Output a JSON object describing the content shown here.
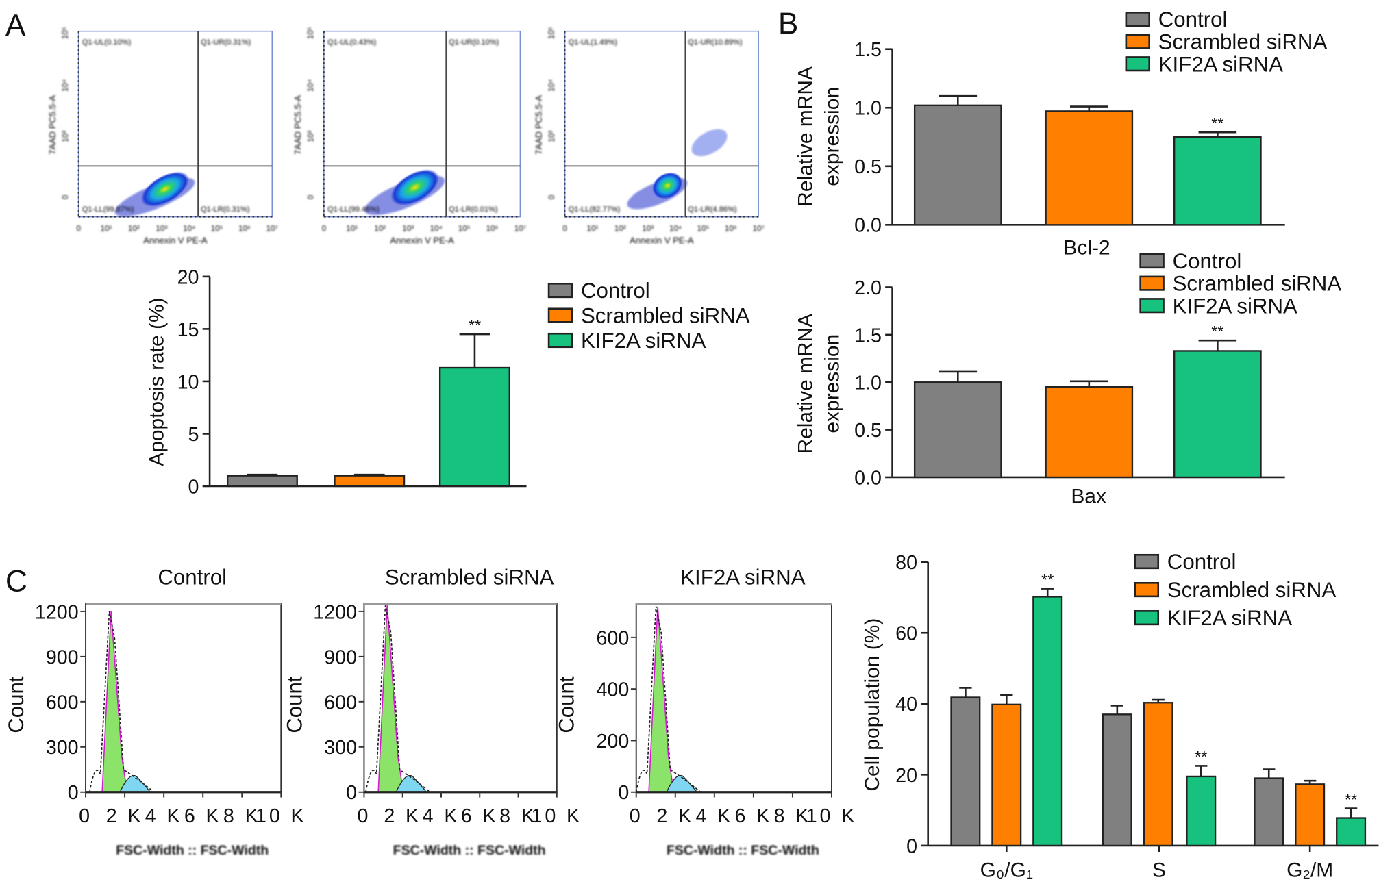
{
  "panel_labels": {
    "a": "A",
    "b": "B",
    "c": "C"
  },
  "colors": {
    "control": "#808080",
    "scrambled": "#ff8000",
    "kif2a": "#17c27f",
    "axis": "#222222"
  },
  "chart_data": [
    {
      "id": "flow-annexin",
      "type": "scatter",
      "xlabel": "Annexin V PE-A",
      "ylabel": "7AAD PC5.5-A",
      "xticks": [
        "0",
        "10¹",
        "10²",
        "10³",
        "10⁴",
        "10⁵",
        "10⁶",
        "10⁷"
      ],
      "yticks": [
        "0",
        "10³",
        "10⁴",
        "10⁵"
      ],
      "panels": [
        {
          "group": "Control",
          "UL": "Q1-UL(0.10%)",
          "UR": "Q1-UR(0.31%)",
          "LL": "Q1-LL(99.87%)",
          "LR": "Q1-LR(0.31%)"
        },
        {
          "group": "Scrambled siRNA",
          "UL": "Q1-UL(0.43%)",
          "UR": "Q1-UR(0.10%)",
          "LL": "Q1-LL(99.46%)",
          "LR": "Q1-LR(0.01%)"
        },
        {
          "group": "KIF2A siRNA",
          "UL": "Q1-UL(1.49%)",
          "UR": "Q1-UR(10.89%)",
          "LL": "Q1-LL(82.77%)",
          "LR": "Q1-LR(4.86%)"
        }
      ]
    },
    {
      "id": "apoptosis-rate",
      "type": "bar",
      "title": "",
      "xlabel": "",
      "ylabel": "Apoptosis rate (%)",
      "ylim": [
        0,
        20
      ],
      "yticks": [
        0,
        5,
        10,
        15,
        20
      ],
      "categories": [
        ""
      ],
      "series": [
        {
          "name": "Control",
          "values": [
            1.0
          ],
          "errors": [
            0.1
          ],
          "annotations": [
            ""
          ]
        },
        {
          "name": "Scrambled siRNA",
          "values": [
            1.0
          ],
          "errors": [
            0.1
          ],
          "annotations": [
            ""
          ]
        },
        {
          "name": "KIF2A siRNA",
          "values": [
            11.3
          ],
          "errors": [
            3.2
          ],
          "annotations": [
            "**"
          ]
        }
      ],
      "legend": "right"
    },
    {
      "id": "bcl2-mrna",
      "type": "bar",
      "xlabel": "Bcl-2",
      "ylabel": [
        "Relative mRNA",
        "expression"
      ],
      "ylim": [
        0,
        1.5
      ],
      "yticks": [
        "0.0",
        "0.5",
        "1.0",
        "1.5"
      ],
      "categories": [
        ""
      ],
      "series": [
        {
          "name": "Control",
          "values": [
            1.02
          ],
          "errors": [
            0.08
          ],
          "annotations": [
            ""
          ]
        },
        {
          "name": "Scrambled siRNA",
          "values": [
            0.97
          ],
          "errors": [
            0.04
          ],
          "annotations": [
            ""
          ]
        },
        {
          "name": "KIF2A siRNA",
          "values": [
            0.75
          ],
          "errors": [
            0.04
          ],
          "annotations": [
            "**"
          ]
        }
      ],
      "legend": "top-right"
    },
    {
      "id": "bax-mrna",
      "type": "bar",
      "xlabel": "Bax",
      "ylabel": [
        "Relative mRNA",
        "expression"
      ],
      "ylim": [
        0,
        2.0
      ],
      "yticks": [
        "0.0",
        "0.5",
        "1.0",
        "1.5",
        "2.0"
      ],
      "categories": [
        ""
      ],
      "series": [
        {
          "name": "Control",
          "values": [
            1.0
          ],
          "errors": [
            0.11
          ],
          "annotations": [
            ""
          ]
        },
        {
          "name": "Scrambled siRNA",
          "values": [
            0.95
          ],
          "errors": [
            0.06
          ],
          "annotations": [
            ""
          ]
        },
        {
          "name": "KIF2A siRNA",
          "values": [
            1.33
          ],
          "errors": [
            0.11
          ],
          "annotations": [
            "**"
          ]
        }
      ],
      "legend": "top-right"
    },
    {
      "id": "cell-cycle-histograms",
      "type": "area",
      "xlabel": "FSC-Width :: FSC-Width",
      "ylabel": "Count",
      "xticks": [
        "0",
        "2 K",
        "4 K",
        "6 K",
        "8 K",
        "10 K"
      ],
      "xlim": [
        0,
        10000
      ],
      "panels": [
        {
          "title": "Control",
          "yticks": [
            0,
            300,
            600,
            900,
            1200
          ],
          "ylim": [
            0,
            1250
          ],
          "peak_x": 1300,
          "peak_count": 1200
        },
        {
          "title": "Scrambled siRNA",
          "yticks": [
            0,
            300,
            600,
            900,
            1200
          ],
          "ylim": [
            0,
            1250
          ],
          "peak_x": 1200,
          "peak_count": 1240
        },
        {
          "title": "KIF2A siRNA",
          "yticks": [
            0,
            200,
            400,
            600
          ],
          "ylim": [
            0,
            730
          ],
          "peak_x": 1100,
          "peak_count": 720
        }
      ]
    },
    {
      "id": "cell-population",
      "type": "bar",
      "xlabel": "",
      "ylabel": "Cell population (%)",
      "ylim": [
        0,
        80
      ],
      "yticks": [
        0,
        20,
        40,
        60,
        80
      ],
      "categories": [
        "G₀/G₁",
        "S",
        "G₂/M"
      ],
      "series": [
        {
          "name": "Control",
          "values": [
            41.8,
            37.0,
            19.0
          ],
          "errors": [
            2.7,
            2.5,
            2.5
          ],
          "annotations": [
            "",
            "",
            ""
          ]
        },
        {
          "name": "Scrambled siRNA",
          "values": [
            39.8,
            40.3,
            17.3
          ],
          "errors": [
            2.7,
            0.8,
            1.0
          ],
          "annotations": [
            "",
            "",
            ""
          ]
        },
        {
          "name": "KIF2A siRNA",
          "values": [
            70.2,
            19.5,
            7.8
          ],
          "errors": [
            2.3,
            3.0,
            2.7
          ],
          "annotations": [
            "**",
            "**",
            "**"
          ]
        }
      ],
      "legend": "top-right"
    }
  ]
}
